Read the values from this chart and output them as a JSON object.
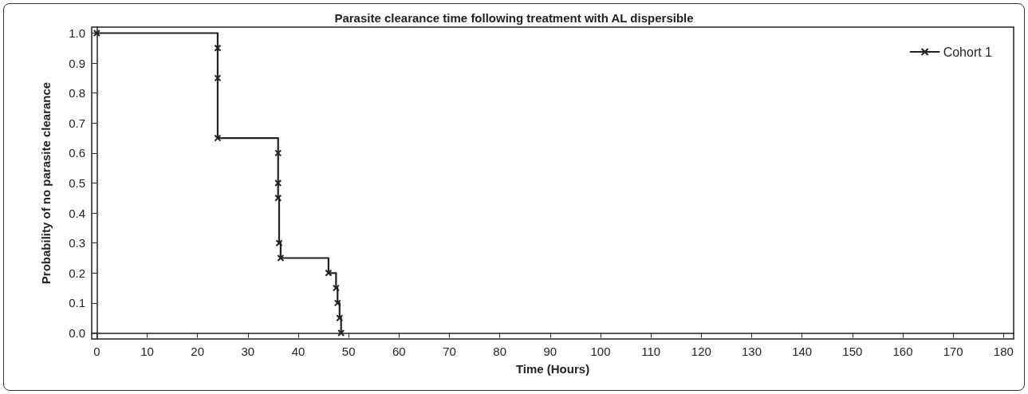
{
  "chart_data": {
    "type": "step",
    "title": "Parasite clearance time following treatment with AL dispersible",
    "xlabel": "Time (Hours)",
    "ylabel": "Probability of no parasite clearance",
    "series": [
      {
        "name": "Cohort 1",
        "color": "#222222",
        "x": [
          0,
          24,
          24,
          24,
          36,
          36,
          36,
          36.2,
          36.5,
          46,
          47.5,
          47.8,
          48.2,
          48.5
        ],
        "values": [
          1.0,
          0.95,
          0.85,
          0.65,
          0.6,
          0.5,
          0.45,
          0.3,
          0.25,
          0.2,
          0.15,
          0.1,
          0.05,
          0.0
        ]
      }
    ],
    "xlim": [
      -1,
      182
    ],
    "xticks": [
      0,
      10,
      20,
      30,
      40,
      50,
      60,
      70,
      80,
      90,
      100,
      110,
      120,
      130,
      140,
      150,
      160,
      170,
      180
    ],
    "ylim": [
      -0.02,
      1.02
    ],
    "yticks": [
      {
        "value": 0,
        "label": "0.0"
      },
      0.1,
      0.2,
      0.3,
      0.4,
      0.5,
      0.6,
      0.7,
      0.8,
      0.9,
      {
        "value": 1,
        "label": "1.0"
      }
    ],
    "legend": "top right",
    "marker": "cross",
    "line_style": "solid"
  }
}
